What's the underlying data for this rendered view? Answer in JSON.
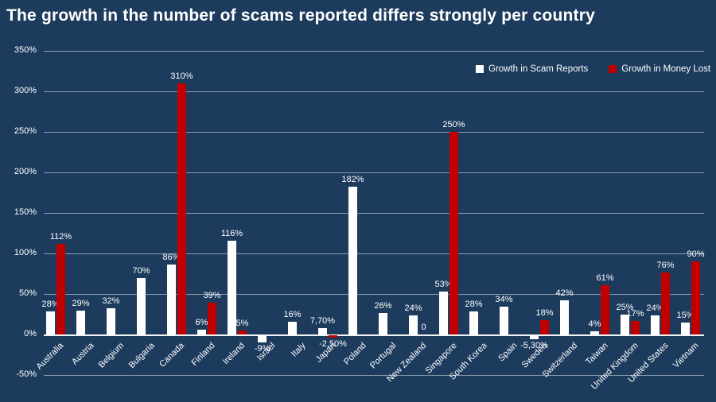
{
  "title": "The growth in the number of scams reported differs strongly per country",
  "colors": {
    "background": "#1C3B5D",
    "text": "#FFFFFF",
    "bar_reports": "#FFFFFF",
    "bar_money": "#C00000",
    "gridline": "rgba(255,255,255,0.5)",
    "axis_line": "rgba(255,255,255,0.95)"
  },
  "legend": {
    "items": [
      {
        "label": "Growth in Scam Reports",
        "color": "#FFFFFF"
      },
      {
        "label": "Growth in Money Lost",
        "color": "#C00000"
      }
    ]
  },
  "chart_data": {
    "type": "bar",
    "title": "The growth in the number of scams reported differs strongly per country",
    "categories": [
      "Australia",
      "Austria",
      "Belgium",
      "Bulgaria",
      "Canada",
      "Finland",
      "Ireland",
      "Israel",
      "Italy",
      "Japan",
      "Poland",
      "Portugal",
      "New Zealand",
      "Singapore",
      "South Korea",
      "Spain",
      "Sweden",
      "Switzerland",
      "Taiwan",
      "United Kingdom",
      "United States",
      "Vietnam"
    ],
    "series": [
      {
        "name": "Growth in Scam Reports",
        "color": "#FFFFFF",
        "values": [
          28,
          29,
          32,
          70,
          86,
          6,
          116,
          -9,
          16,
          7.7,
          182,
          26,
          24,
          53,
          28,
          34,
          -5.3,
          42,
          4,
          25,
          24,
          15
        ],
        "labels": [
          "28%",
          "29%",
          "32%",
          "70%",
          "86%",
          "6%",
          "116%",
          "-9%",
          "16%",
          "7,70%",
          "182%",
          "26%",
          "24%",
          "53%",
          "28%",
          "34%",
          "-5,30%",
          "42%",
          "4%",
          "25%",
          "24%",
          "15%"
        ]
      },
      {
        "name": "Growth in Money Lost",
        "color": "#C00000",
        "values": [
          112,
          null,
          null,
          null,
          310,
          39,
          5,
          null,
          null,
          -2.5,
          null,
          null,
          0,
          250,
          null,
          null,
          18,
          null,
          61,
          17,
          76,
          90
        ],
        "labels": [
          "112%",
          null,
          null,
          null,
          "310%",
          "39%",
          "5%",
          null,
          null,
          "-2,50%",
          null,
          null,
          "0",
          "250%",
          null,
          null,
          "18%",
          null,
          "61%",
          "17%",
          "76%",
          "90%"
        ]
      }
    ],
    "ylim": [
      -50,
      350
    ],
    "ytick_values": [
      350,
      300,
      250,
      200,
      150,
      100,
      50,
      0,
      -50
    ],
    "ytick_labels": [
      "350%",
      "300%",
      "250%",
      "200%",
      "150%",
      "100%",
      "50%",
      "0%",
      "-50%"
    ],
    "grid": true,
    "legend_position": "top-right"
  }
}
